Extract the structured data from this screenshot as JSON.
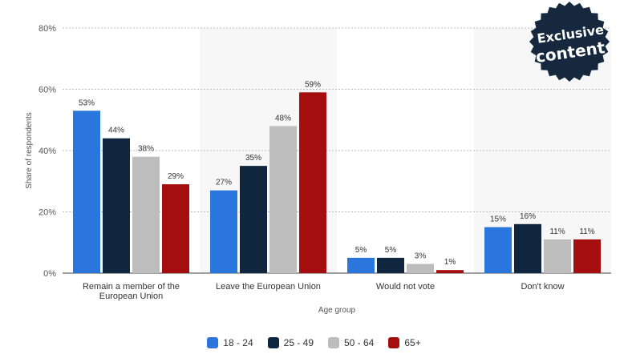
{
  "badge": {
    "line1": "Exclusive",
    "line2": "content"
  },
  "chart_data": {
    "type": "bar",
    "categories": [
      "Remain a member of the European Union",
      "Leave the European Union",
      "Would not vote",
      "Don't know"
    ],
    "category_lines": [
      [
        "Remain a member of the",
        "European Union"
      ],
      [
        "Leave the European Union"
      ],
      [
        "Would not vote"
      ],
      [
        "Don't know"
      ]
    ],
    "series": [
      {
        "name": "18 - 24",
        "color": "#2a76dd",
        "values": [
          53,
          27,
          5,
          15
        ],
        "labels": [
          "53%",
          "27%",
          "5%",
          "15%"
        ]
      },
      {
        "name": "25 - 49",
        "color": "#10263f",
        "values": [
          44,
          35,
          5,
          16
        ],
        "labels": [
          "44%",
          "35%",
          "5%",
          "16%"
        ]
      },
      {
        "name": "50 - 64",
        "color": "#bdbdbd",
        "values": [
          38,
          48,
          3,
          11
        ],
        "labels": [
          "38%",
          "48%",
          "3%",
          "11%"
        ]
      },
      {
        "name": "65+",
        "color": "#a50e0e",
        "values": [
          29,
          59,
          1,
          11
        ],
        "labels": [
          "29%",
          "59%",
          "1%",
          "11%"
        ]
      }
    ],
    "ylim": [
      0,
      80
    ],
    "yticks": [
      0,
      20,
      40,
      60,
      80
    ],
    "ytick_labels": [
      "0%",
      "20%",
      "40%",
      "60%",
      "80%"
    ],
    "xlabel": "Age group",
    "ylabel": "Share of respondents",
    "grid": true,
    "legend_position": "bottom"
  }
}
